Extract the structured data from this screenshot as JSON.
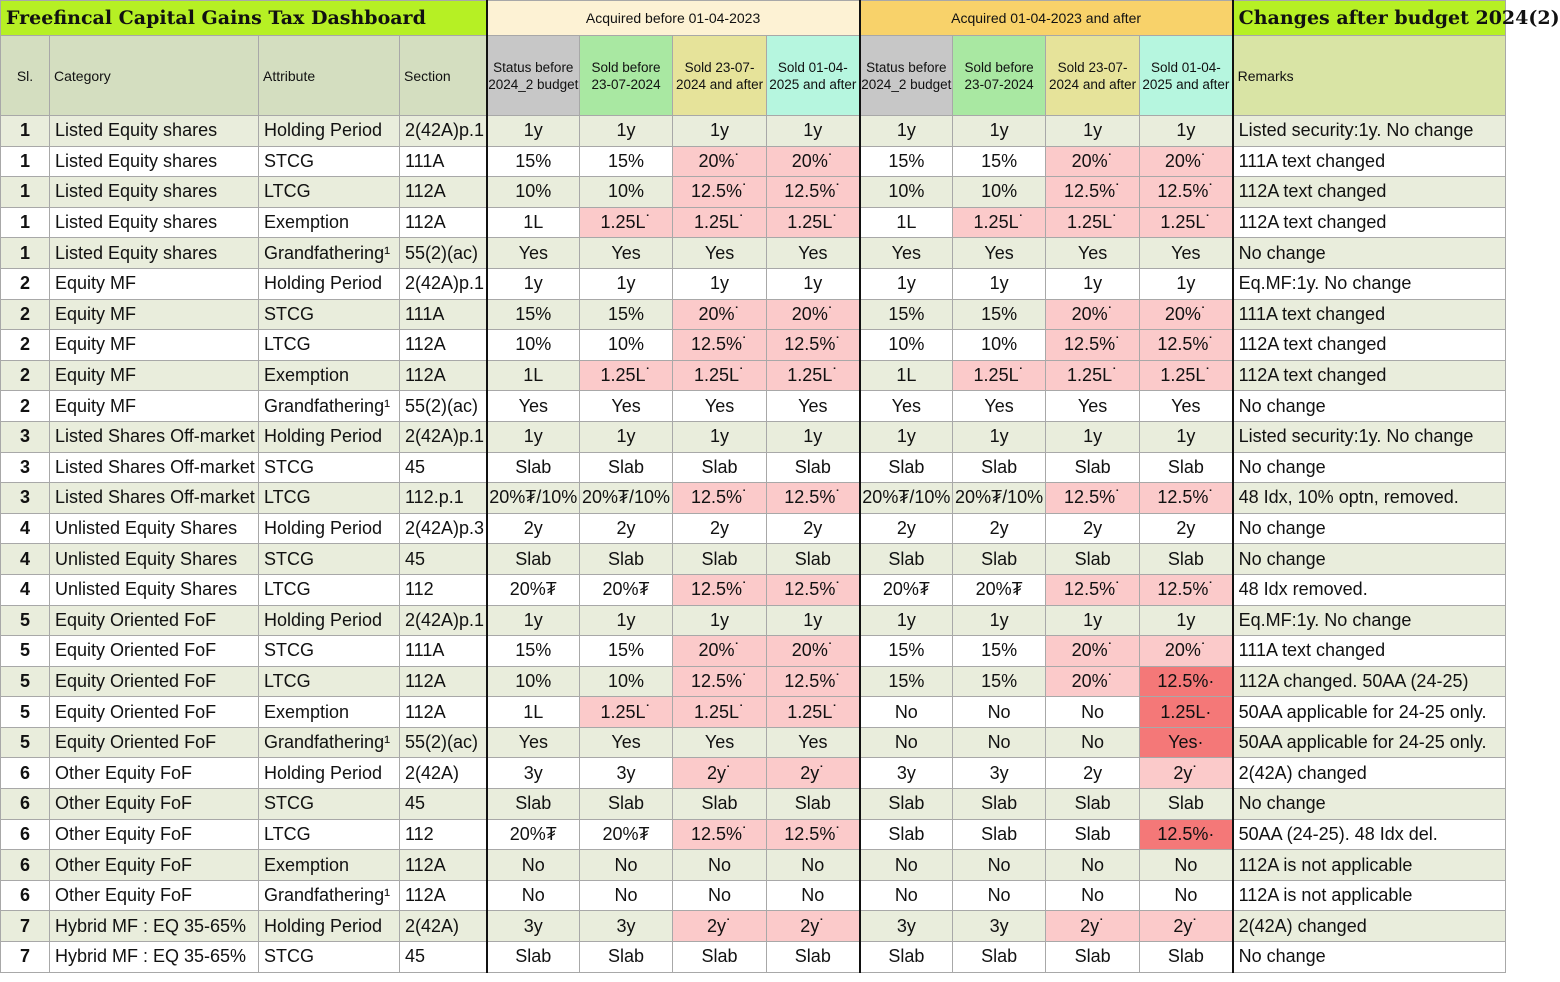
{
  "title": "Freefincal Capital Gains Tax Dashboard",
  "group_before": "Acquired before 01-04-2023",
  "group_after": "Acquired 01-04-2023 and after",
  "group_changes": "Changes after budget 2024(2)",
  "headers": {
    "sl": "Sl.",
    "category": "Category",
    "attribute": "Attribute",
    "section": "Section",
    "status": "Status before 2024_2 budget",
    "sold_before": "Sold before 23-07-2024",
    "sold_after_jul": "Sold 23-07-2024 and after",
    "sold_after_apr": "Sold 01-04-2025 and after",
    "remarks": "Remarks"
  },
  "rows": [
    {
      "sl": "1",
      "category": "Listed Equity shares",
      "attribute": "Holding Period",
      "section": "2(42A)p.1",
      "b": [
        "1y",
        "1y",
        "1y",
        "1y"
      ],
      "a": [
        "1y",
        "1y",
        "1y",
        "1y"
      ],
      "remark": "Listed security:1y. No change"
    },
    {
      "sl": "1",
      "category": "Listed Equity shares",
      "attribute": "STCG",
      "section": "111A",
      "b": [
        "15%",
        "15%",
        "20%˙",
        "20%˙"
      ],
      "a": [
        "15%",
        "15%",
        "20%˙",
        "20%˙"
      ],
      "remark": "111A text changed"
    },
    {
      "sl": "1",
      "category": "Listed Equity shares",
      "attribute": "LTCG",
      "section": "112A",
      "b": [
        "10%",
        "10%",
        "12.5%˙",
        "12.5%˙"
      ],
      "a": [
        "10%",
        "10%",
        "12.5%˙",
        "12.5%˙"
      ],
      "remark": "112A text changed"
    },
    {
      "sl": "1",
      "category": "Listed Equity shares",
      "attribute": "Exemption",
      "section": "112A",
      "b": [
        "1L",
        "1.25L˙",
        "1.25L˙",
        "1.25L˙"
      ],
      "a": [
        "1L",
        "1.25L˙",
        "1.25L˙",
        "1.25L˙"
      ],
      "remark": "112A text changed"
    },
    {
      "sl": "1",
      "category": "Listed Equity shares",
      "attribute": "Grandfathering¹",
      "section": "55(2)(ac)",
      "b": [
        "Yes",
        "Yes",
        "Yes",
        "Yes"
      ],
      "a": [
        "Yes",
        "Yes",
        "Yes",
        "Yes"
      ],
      "remark": "No change"
    },
    {
      "sl": "2",
      "category": "Equity MF",
      "attribute": "Holding Period",
      "section": "2(42A)p.1",
      "b": [
        "1y",
        "1y",
        "1y",
        "1y"
      ],
      "a": [
        "1y",
        "1y",
        "1y",
        "1y"
      ],
      "remark": "Eq.MF:1y. No change"
    },
    {
      "sl": "2",
      "category": "Equity MF",
      "attribute": "STCG",
      "section": "111A",
      "b": [
        "15%",
        "15%",
        "20%˙",
        "20%˙"
      ],
      "a": [
        "15%",
        "15%",
        "20%˙",
        "20%˙"
      ],
      "remark": "111A text changed"
    },
    {
      "sl": "2",
      "category": "Equity MF",
      "attribute": "LTCG",
      "section": "112A",
      "b": [
        "10%",
        "10%",
        "12.5%˙",
        "12.5%˙"
      ],
      "a": [
        "10%",
        "10%",
        "12.5%˙",
        "12.5%˙"
      ],
      "remark": "112A text changed"
    },
    {
      "sl": "2",
      "category": "Equity MF",
      "attribute": "Exemption",
      "section": "112A",
      "b": [
        "1L",
        "1.25L˙",
        "1.25L˙",
        "1.25L˙"
      ],
      "a": [
        "1L",
        "1.25L˙",
        "1.25L˙",
        "1.25L˙"
      ],
      "remark": "112A text changed"
    },
    {
      "sl": "2",
      "category": "Equity MF",
      "attribute": "Grandfathering¹",
      "section": "55(2)(ac)",
      "b": [
        "Yes",
        "Yes",
        "Yes",
        "Yes"
      ],
      "a": [
        "Yes",
        "Yes",
        "Yes",
        "Yes"
      ],
      "remark": "No change"
    },
    {
      "sl": "3",
      "category": "Listed Shares Off-market",
      "attribute": "Holding Period",
      "section": "2(42A)p.1",
      "b": [
        "1y",
        "1y",
        "1y",
        "1y"
      ],
      "a": [
        "1y",
        "1y",
        "1y",
        "1y"
      ],
      "remark": "Listed security:1y. No change"
    },
    {
      "sl": "3",
      "category": "Listed Shares Off-market",
      "attribute": "STCG",
      "section": "45",
      "b": [
        "Slab",
        "Slab",
        "Slab",
        "Slab"
      ],
      "a": [
        "Slab",
        "Slab",
        "Slab",
        "Slab"
      ],
      "remark": "No change"
    },
    {
      "sl": "3",
      "category": "Listed Shares Off-market",
      "attribute": "LTCG",
      "section": "112.p.1",
      "b": [
        "20%₮/10%",
        "20%₮/10%",
        "12.5%˙",
        "12.5%˙"
      ],
      "a": [
        "20%₮/10%",
        "20%₮/10%",
        "12.5%˙",
        "12.5%˙"
      ],
      "remark": "48 Idx, 10% optn, removed."
    },
    {
      "sl": "4",
      "category": "Unlisted Equity Shares",
      "attribute": "Holding Period",
      "section": "2(42A)p.3",
      "b": [
        "2y",
        "2y",
        "2y",
        "2y"
      ],
      "a": [
        "2y",
        "2y",
        "2y",
        "2y"
      ],
      "remark": "No change"
    },
    {
      "sl": "4",
      "category": "Unlisted Equity Shares",
      "attribute": "STCG",
      "section": "45",
      "b": [
        "Slab",
        "Slab",
        "Slab",
        "Slab"
      ],
      "a": [
        "Slab",
        "Slab",
        "Slab",
        "Slab"
      ],
      "remark": "No change"
    },
    {
      "sl": "4",
      "category": "Unlisted Equity Shares",
      "attribute": "LTCG",
      "section": "112",
      "b": [
        "20%₮",
        "20%₮",
        "12.5%˙",
        "12.5%˙"
      ],
      "a": [
        "20%₮",
        "20%₮",
        "12.5%˙",
        "12.5%˙"
      ],
      "remark": "48 Idx removed."
    },
    {
      "sl": "5",
      "category": "Equity Oriented FoF",
      "attribute": "Holding Period",
      "section": "2(42A)p.1",
      "b": [
        "1y",
        "1y",
        "1y",
        "1y"
      ],
      "a": [
        "1y",
        "1y",
        "1y",
        "1y"
      ],
      "remark": "Eq.MF:1y. No change"
    },
    {
      "sl": "5",
      "category": "Equity Oriented FoF",
      "attribute": "STCG",
      "section": "111A",
      "b": [
        "15%",
        "15%",
        "20%˙",
        "20%˙"
      ],
      "a": [
        "15%",
        "15%",
        "20%˙",
        "20%˙"
      ],
      "remark": "111A text changed"
    },
    {
      "sl": "5",
      "category": "Equity Oriented FoF",
      "attribute": "LTCG",
      "section": "112A",
      "b": [
        "10%",
        "10%",
        "12.5%˙",
        "12.5%˙"
      ],
      "a": [
        "15%",
        "15%",
        "20%˙",
        "12.5%·"
      ],
      "remark": "112A changed. 50AA (24-25)"
    },
    {
      "sl": "5",
      "category": "Equity Oriented FoF",
      "attribute": "Exemption",
      "section": "112A",
      "b": [
        "1L",
        "1.25L˙",
        "1.25L˙",
        "1.25L˙"
      ],
      "a": [
        "No",
        "No",
        "No",
        "1.25L·"
      ],
      "remark": "50AA applicable for 24-25 only."
    },
    {
      "sl": "5",
      "category": "Equity Oriented FoF",
      "attribute": "Grandfathering¹",
      "section": "55(2)(ac)",
      "b": [
        "Yes",
        "Yes",
        "Yes",
        "Yes"
      ],
      "a": [
        "No",
        "No",
        "No",
        "Yes·"
      ],
      "remark": "50AA applicable for 24-25 only."
    },
    {
      "sl": "6",
      "category": "Other Equity FoF",
      "attribute": "Holding Period",
      "section": "2(42A)",
      "b": [
        "3y",
        "3y",
        "2y˙",
        "2y˙"
      ],
      "a": [
        "3y",
        "3y",
        "2y",
        "2y˙"
      ],
      "remark": "2(42A) changed"
    },
    {
      "sl": "6",
      "category": "Other Equity FoF",
      "attribute": "STCG",
      "section": "45",
      "b": [
        "Slab",
        "Slab",
        "Slab",
        "Slab"
      ],
      "a": [
        "Slab",
        "Slab",
        "Slab",
        "Slab"
      ],
      "remark": "No change"
    },
    {
      "sl": "6",
      "category": "Other Equity FoF",
      "attribute": "LTCG",
      "section": "112",
      "b": [
        "20%₮",
        "20%₮",
        "12.5%˙",
        "12.5%˙"
      ],
      "a": [
        "Slab",
        "Slab",
        "Slab",
        "12.5%·"
      ],
      "remark": "50AA (24-25). 48 Idx del."
    },
    {
      "sl": "6",
      "category": "Other Equity FoF",
      "attribute": "Exemption",
      "section": "112A",
      "b": [
        "No",
        "No",
        "No",
        "No"
      ],
      "a": [
        "No",
        "No",
        "No",
        "No"
      ],
      "remark": "112A is not applicable"
    },
    {
      "sl": "6",
      "category": "Other Equity FoF",
      "attribute": "Grandfathering¹",
      "section": "112A",
      "b": [
        "No",
        "No",
        "No",
        "No"
      ],
      "a": [
        "No",
        "No",
        "No",
        "No"
      ],
      "remark": "112A is not applicable"
    },
    {
      "sl": "7",
      "category": "Hybrid MF : EQ 35-65%",
      "attribute": "Holding Period",
      "section": "2(42A)",
      "b": [
        "3y",
        "3y",
        "2y˙",
        "2y˙"
      ],
      "a": [
        "3y",
        "3y",
        "2y˙",
        "2y˙"
      ],
      "remark": "2(42A) changed"
    },
    {
      "sl": "7",
      "category": "Hybrid MF : EQ 35-65%",
      "attribute": "STCG",
      "section": "45",
      "b": [
        "Slab",
        "Slab",
        "Slab",
        "Slab"
      ],
      "a": [
        "Slab",
        "Slab",
        "Slab",
        "Slab"
      ],
      "remark": "No change"
    }
  ],
  "highlights": {
    "pink": [
      [
        1,
        2
      ],
      [
        1,
        3
      ],
      [
        1,
        6
      ],
      [
        1,
        7
      ],
      [
        2,
        2
      ],
      [
        2,
        3
      ],
      [
        2,
        6
      ],
      [
        2,
        7
      ],
      [
        3,
        1
      ],
      [
        3,
        2
      ],
      [
        3,
        3
      ],
      [
        3,
        5
      ],
      [
        3,
        6
      ],
      [
        3,
        7
      ],
      [
        6,
        2
      ],
      [
        6,
        3
      ],
      [
        6,
        6
      ],
      [
        6,
        7
      ],
      [
        7,
        2
      ],
      [
        7,
        3
      ],
      [
        7,
        6
      ],
      [
        7,
        7
      ],
      [
        8,
        1
      ],
      [
        8,
        2
      ],
      [
        8,
        3
      ],
      [
        8,
        5
      ],
      [
        8,
        6
      ],
      [
        8,
        7
      ],
      [
        12,
        2
      ],
      [
        12,
        3
      ],
      [
        12,
        6
      ],
      [
        12,
        7
      ],
      [
        15,
        2
      ],
      [
        15,
        3
      ],
      [
        15,
        6
      ],
      [
        15,
        7
      ],
      [
        17,
        2
      ],
      [
        17,
        3
      ],
      [
        17,
        6
      ],
      [
        17,
        7
      ],
      [
        18,
        2
      ],
      [
        18,
        3
      ],
      [
        18,
        6
      ],
      [
        19,
        1
      ],
      [
        19,
        2
      ],
      [
        19,
        3
      ],
      [
        21,
        2
      ],
      [
        21,
        3
      ],
      [
        21,
        7
      ],
      [
        23,
        2
      ],
      [
        23,
        3
      ],
      [
        26,
        2
      ],
      [
        26,
        3
      ],
      [
        26,
        6
      ],
      [
        26,
        7
      ]
    ],
    "red": [
      [
        18,
        7
      ],
      [
        19,
        7
      ],
      [
        20,
        7
      ],
      [
        23,
        7
      ]
    ]
  }
}
